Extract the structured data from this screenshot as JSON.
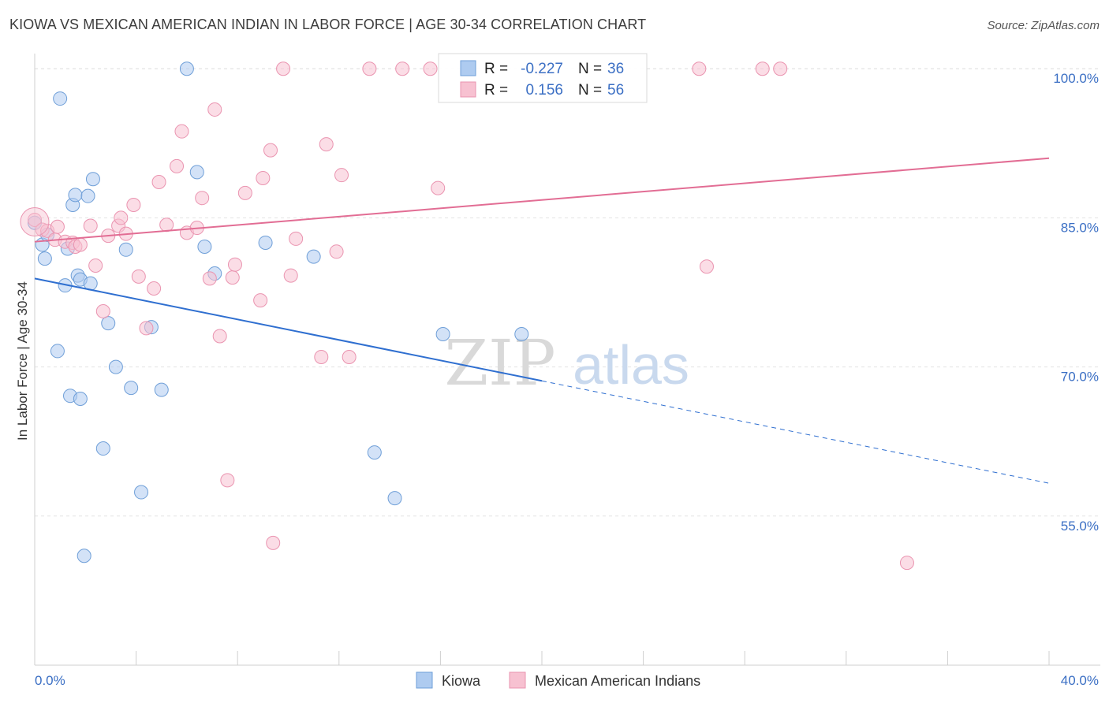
{
  "header": {
    "title": "KIOWA VS MEXICAN AMERICAN INDIAN IN LABOR FORCE | AGE 30-34 CORRELATION CHART",
    "source": "Source: ZipAtlas.com"
  },
  "stats_box": {
    "rows": [
      {
        "r_label": "R =",
        "r_value": "-0.227",
        "n_label": "N =",
        "n_value": "36"
      },
      {
        "r_label": "R =",
        "r_value": "0.156",
        "n_label": "N =",
        "n_value": "56"
      }
    ]
  },
  "watermark": {
    "zip": "ZIP",
    "atlas": "atlas"
  },
  "colors": {
    "kiowa_fill": "#aecbf0",
    "kiowa_stroke": "#6f9fd8",
    "kiowa_line": "#2f6fd0",
    "mexican_fill": "#f7c1d1",
    "mexican_stroke": "#ea94b0",
    "mexican_line": "#e26d94",
    "axis_label": "#3b6fc4",
    "grid": "#e3e3e3"
  },
  "chart_data": {
    "type": "scatter",
    "title": "KIOWA VS MEXICAN AMERICAN INDIAN IN LABOR FORCE | AGE 30-34 CORRELATION CHART",
    "xlabel": "",
    "ylabel": "In Labor Force | Age 30-34",
    "xlim": [
      0,
      40
    ],
    "ylim": [
      40,
      102
    ],
    "x_tick_labels": [
      "0.0%",
      "40.0%"
    ],
    "y_ticks": [
      55,
      70,
      85,
      100
    ],
    "y_tick_labels": [
      "55.0%",
      "70.0%",
      "85.0%",
      "100.0%"
    ],
    "grid": true,
    "legend_position": "bottom-center",
    "series": [
      {
        "name": "Kiowa",
        "color": "#aecbf0",
        "points": [
          [
            0.0,
            84.5
          ],
          [
            0.3,
            82.3
          ],
          [
            0.4,
            80.9
          ],
          [
            0.5,
            83.3
          ],
          [
            1.0,
            97.0
          ],
          [
            1.2,
            78.2
          ],
          [
            1.3,
            81.9
          ],
          [
            1.4,
            67.1
          ],
          [
            1.5,
            86.3
          ],
          [
            1.6,
            87.3
          ],
          [
            1.7,
            79.2
          ],
          [
            1.8,
            78.8
          ],
          [
            1.8,
            66.8
          ],
          [
            2.1,
            87.2
          ],
          [
            2.2,
            78.4
          ],
          [
            2.3,
            88.9
          ],
          [
            2.7,
            61.8
          ],
          [
            2.9,
            74.4
          ],
          [
            3.2,
            70.0
          ],
          [
            3.6,
            81.8
          ],
          [
            3.8,
            67.9
          ],
          [
            4.2,
            57.4
          ],
          [
            4.6,
            74.0
          ],
          [
            5.0,
            67.7
          ],
          [
            6.0,
            100.0
          ],
          [
            6.4,
            89.6
          ],
          [
            6.7,
            82.1
          ],
          [
            7.1,
            79.4
          ],
          [
            9.1,
            82.5
          ],
          [
            11.0,
            81.1
          ],
          [
            13.4,
            61.4
          ],
          [
            14.2,
            56.8
          ],
          [
            16.1,
            73.3
          ],
          [
            19.2,
            73.3
          ],
          [
            0.9,
            71.6
          ],
          [
            1.95,
            51.0
          ]
        ]
      },
      {
        "name": "Mexican American Indians",
        "color": "#f7c1d1",
        "points": [
          [
            0.0,
            84.8
          ],
          [
            0.3,
            83.8
          ],
          [
            0.5,
            83.7
          ],
          [
            0.8,
            82.8
          ],
          [
            1.2,
            82.6
          ],
          [
            1.5,
            82.5
          ],
          [
            1.6,
            82.1
          ],
          [
            1.8,
            82.3
          ],
          [
            2.2,
            84.2
          ],
          [
            2.4,
            80.2
          ],
          [
            2.7,
            75.6
          ],
          [
            2.9,
            83.2
          ],
          [
            3.3,
            84.2
          ],
          [
            3.4,
            85.0
          ],
          [
            3.6,
            83.4
          ],
          [
            3.9,
            86.3
          ],
          [
            4.1,
            79.1
          ],
          [
            4.4,
            73.9
          ],
          [
            4.7,
            77.9
          ],
          [
            4.9,
            88.6
          ],
          [
            5.2,
            84.3
          ],
          [
            5.6,
            90.2
          ],
          [
            5.8,
            93.7
          ],
          [
            6.0,
            83.5
          ],
          [
            6.4,
            84.0
          ],
          [
            6.6,
            87.0
          ],
          [
            6.9,
            78.9
          ],
          [
            7.1,
            95.9
          ],
          [
            7.3,
            73.1
          ],
          [
            7.6,
            58.6
          ],
          [
            7.8,
            79.0
          ],
          [
            7.9,
            80.3
          ],
          [
            8.3,
            87.5
          ],
          [
            8.9,
            76.7
          ],
          [
            9.0,
            89.0
          ],
          [
            9.3,
            91.8
          ],
          [
            9.4,
            52.3
          ],
          [
            9.8,
            100.0
          ],
          [
            10.1,
            79.2
          ],
          [
            10.3,
            82.9
          ],
          [
            11.3,
            71.0
          ],
          [
            11.5,
            92.4
          ],
          [
            11.9,
            81.6
          ],
          [
            12.1,
            89.3
          ],
          [
            12.4,
            71.0
          ],
          [
            13.2,
            100.0
          ],
          [
            14.5,
            100.0
          ],
          [
            15.6,
            100.0
          ],
          [
            15.9,
            88.0
          ],
          [
            20.0,
            100.0
          ],
          [
            26.2,
            100.0
          ],
          [
            26.5,
            80.1
          ],
          [
            28.7,
            100.0
          ],
          [
            29.4,
            100.0
          ],
          [
            34.4,
            50.3
          ],
          [
            0.9,
            84.1
          ]
        ]
      }
    ],
    "trend_lines": [
      {
        "series": "Kiowa",
        "x1": 0.0,
        "y1": 78.9,
        "x2": 20.0,
        "y2": 68.6,
        "dashed_to_x": 40.0,
        "dashed_to_y": 58.3
      },
      {
        "series": "Mexican American Indians",
        "x1": 0.0,
        "y1": 82.6,
        "x2": 40.0,
        "y2": 91.0
      }
    ]
  }
}
